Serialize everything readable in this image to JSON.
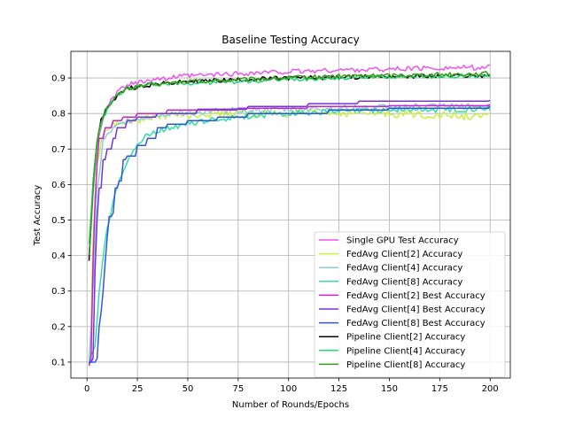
{
  "chart_data": {
    "type": "line",
    "title": "Baseline Testing Accuracy",
    "xlabel": "Number of Rounds/Epochs",
    "ylabel": "Test Accuracy",
    "xlim": [
      -8,
      210
    ],
    "ylim": [
      0.055,
      0.975
    ],
    "xticks": [
      0,
      25,
      50,
      75,
      100,
      125,
      150,
      175,
      200
    ],
    "yticks": [
      0.1,
      0.2,
      0.3,
      0.4,
      0.5,
      0.6,
      0.7,
      0.8,
      0.9
    ],
    "grid": true,
    "legend_position": "lower right",
    "series": [
      {
        "name": "Single GPU Test Accuracy",
        "color": "#ee55ee",
        "kind": "noisy",
        "points": [
          [
            1,
            0.39
          ],
          [
            3,
            0.58
          ],
          [
            5,
            0.72
          ],
          [
            8,
            0.79
          ],
          [
            12,
            0.835
          ],
          [
            15,
            0.86
          ],
          [
            20,
            0.88
          ],
          [
            30,
            0.895
          ],
          [
            50,
            0.905
          ],
          [
            75,
            0.912
          ],
          [
            100,
            0.917
          ],
          [
            125,
            0.922
          ],
          [
            150,
            0.925
          ],
          [
            175,
            0.928
          ],
          [
            200,
            0.93
          ]
        ],
        "noise": 0.007
      },
      {
        "name": "FedAvg Client[2] Accuracy",
        "color": "#c8f040",
        "kind": "noisy",
        "points": [
          [
            1,
            0.09
          ],
          [
            2,
            0.2
          ],
          [
            3,
            0.45
          ],
          [
            5,
            0.66
          ],
          [
            8,
            0.74
          ],
          [
            12,
            0.77
          ],
          [
            20,
            0.78
          ],
          [
            40,
            0.795
          ],
          [
            60,
            0.8
          ],
          [
            80,
            0.8
          ],
          [
            100,
            0.8
          ],
          [
            125,
            0.802
          ],
          [
            150,
            0.8
          ],
          [
            175,
            0.795
          ],
          [
            200,
            0.79
          ]
        ],
        "noise": 0.011
      },
      {
        "name": "FedAvg Client[4] Accuracy",
        "color": "#88ccdd",
        "kind": "noisy",
        "points": [
          [
            1,
            0.1
          ],
          [
            3,
            0.3
          ],
          [
            5,
            0.58
          ],
          [
            8,
            0.72
          ],
          [
            12,
            0.75
          ],
          [
            20,
            0.78
          ],
          [
            40,
            0.8
          ],
          [
            60,
            0.805
          ],
          [
            80,
            0.81
          ],
          [
            100,
            0.812
          ],
          [
            125,
            0.815
          ],
          [
            150,
            0.818
          ],
          [
            175,
            0.82
          ],
          [
            200,
            0.82
          ]
        ],
        "noise": 0.009
      },
      {
        "name": "FedAvg Client[8] Accuracy",
        "color": "#33ddaa",
        "kind": "noisy",
        "points": [
          [
            1,
            0.1
          ],
          [
            4,
            0.14
          ],
          [
            6,
            0.3
          ],
          [
            8,
            0.4
          ],
          [
            10,
            0.48
          ],
          [
            12,
            0.52
          ],
          [
            15,
            0.6
          ],
          [
            20,
            0.67
          ],
          [
            25,
            0.71
          ],
          [
            30,
            0.74
          ],
          [
            40,
            0.76
          ],
          [
            50,
            0.77
          ],
          [
            60,
            0.78
          ],
          [
            75,
            0.79
          ],
          [
            100,
            0.8
          ],
          [
            125,
            0.805
          ],
          [
            150,
            0.81
          ],
          [
            175,
            0.81
          ],
          [
            200,
            0.815
          ]
        ],
        "noise": 0.008
      },
      {
        "name": "FedAvg Client[2] Best Accuracy",
        "color": "#cc22cc",
        "kind": "step",
        "points": [
          [
            1,
            0.09
          ],
          [
            2,
            0.11
          ],
          [
            3,
            0.38
          ],
          [
            4,
            0.55
          ],
          [
            5,
            0.66
          ],
          [
            6,
            0.73
          ],
          [
            9,
            0.76
          ],
          [
            13,
            0.78
          ],
          [
            18,
            0.79
          ],
          [
            25,
            0.8
          ],
          [
            40,
            0.81
          ],
          [
            75,
            0.815
          ],
          [
            110,
            0.82
          ],
          [
            150,
            0.822
          ],
          [
            200,
            0.825
          ]
        ]
      },
      {
        "name": "FedAvg Client[4] Best Accuracy",
        "color": "#7733dd",
        "kind": "step",
        "points": [
          [
            1,
            0.1
          ],
          [
            3,
            0.11
          ],
          [
            4,
            0.36
          ],
          [
            5,
            0.5
          ],
          [
            6,
            0.59
          ],
          [
            8,
            0.67
          ],
          [
            10,
            0.7
          ],
          [
            13,
            0.73
          ],
          [
            15,
            0.76
          ],
          [
            20,
            0.78
          ],
          [
            25,
            0.79
          ],
          [
            35,
            0.8
          ],
          [
            55,
            0.812
          ],
          [
            80,
            0.82
          ],
          [
            110,
            0.828
          ],
          [
            135,
            0.835
          ],
          [
            200,
            0.837
          ]
        ]
      },
      {
        "name": "FedAvg Client[8] Best Accuracy",
        "color": "#3355dd",
        "kind": "step",
        "points": [
          [
            1,
            0.1
          ],
          [
            5,
            0.11
          ],
          [
            6,
            0.2
          ],
          [
            7,
            0.24
          ],
          [
            8,
            0.3
          ],
          [
            9,
            0.38
          ],
          [
            10,
            0.45
          ],
          [
            11,
            0.51
          ],
          [
            13,
            0.52
          ],
          [
            14,
            0.59
          ],
          [
            16,
            0.61
          ],
          [
            18,
            0.67
          ],
          [
            20,
            0.68
          ],
          [
            25,
            0.71
          ],
          [
            30,
            0.73
          ],
          [
            35,
            0.76
          ],
          [
            40,
            0.77
          ],
          [
            50,
            0.78
          ],
          [
            65,
            0.79
          ],
          [
            80,
            0.8
          ],
          [
            120,
            0.81
          ],
          [
            150,
            0.815
          ],
          [
            200,
            0.82
          ]
        ]
      },
      {
        "name": "Pipeline Client[2] Accuracy",
        "color": "#000000",
        "kind": "noisy",
        "points": [
          [
            1,
            0.39
          ],
          [
            2,
            0.5
          ],
          [
            3,
            0.6
          ],
          [
            5,
            0.72
          ],
          [
            7,
            0.78
          ],
          [
            10,
            0.82
          ],
          [
            15,
            0.85
          ],
          [
            20,
            0.87
          ],
          [
            30,
            0.88
          ],
          [
            50,
            0.89
          ],
          [
            75,
            0.895
          ],
          [
            100,
            0.9
          ],
          [
            125,
            0.902
          ],
          [
            150,
            0.905
          ],
          [
            175,
            0.905
          ],
          [
            200,
            0.907
          ]
        ],
        "noise": 0.006
      },
      {
        "name": "Pipeline Client[4] Accuracy",
        "color": "#22dd77",
        "kind": "noisy",
        "points": [
          [
            1,
            0.43
          ],
          [
            3,
            0.6
          ],
          [
            5,
            0.72
          ],
          [
            8,
            0.79
          ],
          [
            12,
            0.83
          ],
          [
            15,
            0.85
          ],
          [
            20,
            0.87
          ],
          [
            30,
            0.88
          ],
          [
            50,
            0.885
          ],
          [
            75,
            0.89
          ],
          [
            100,
            0.895
          ],
          [
            125,
            0.9
          ],
          [
            150,
            0.905
          ],
          [
            175,
            0.905
          ],
          [
            200,
            0.906
          ]
        ],
        "noise": 0.006
      },
      {
        "name": "Pipeline Client[8] Accuracy",
        "color": "#3a9a1a",
        "kind": "noisy",
        "points": [
          [
            1,
            0.4
          ],
          [
            3,
            0.58
          ],
          [
            5,
            0.72
          ],
          [
            7,
            0.78
          ],
          [
            10,
            0.82
          ],
          [
            15,
            0.85
          ],
          [
            20,
            0.87
          ],
          [
            30,
            0.88
          ],
          [
            50,
            0.89
          ],
          [
            75,
            0.895
          ],
          [
            100,
            0.9
          ],
          [
            125,
            0.905
          ],
          [
            150,
            0.907
          ],
          [
            175,
            0.91
          ],
          [
            200,
            0.912
          ]
        ],
        "noise": 0.006
      }
    ]
  }
}
